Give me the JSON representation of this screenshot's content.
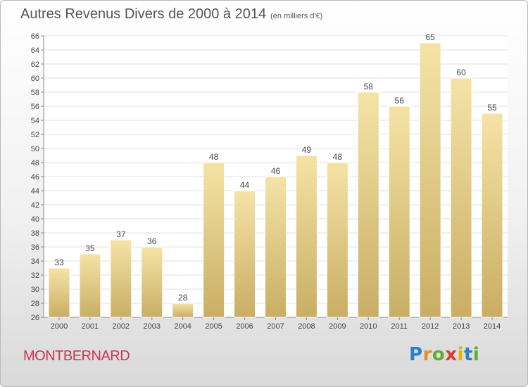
{
  "title": "Autres Revenus Divers de 2000 à 2014",
  "unit_note": "(en milliers d'€)",
  "commune": "MONTBERNARD",
  "logo_text": "Proxiti",
  "colors": {
    "bar_fill_top": "#f5e3a6",
    "bar_fill_bottom": "#c9ae64",
    "grid": "#e2e2e2",
    "axis_text": "#444444",
    "commune": "#cc3355"
  },
  "chart_data": {
    "type": "bar",
    "categories": [
      "2000",
      "2001",
      "2002",
      "2003",
      "2004",
      "2005",
      "2006",
      "2007",
      "2008",
      "2009",
      "2010",
      "2011",
      "2012",
      "2013",
      "2014"
    ],
    "values": [
      33,
      35,
      37,
      36,
      28,
      48,
      44,
      46,
      49,
      48,
      58,
      56,
      65,
      60,
      55
    ],
    "ylim": [
      26,
      66
    ],
    "ytick_step": 2,
    "grid": true,
    "data_labels": true
  }
}
